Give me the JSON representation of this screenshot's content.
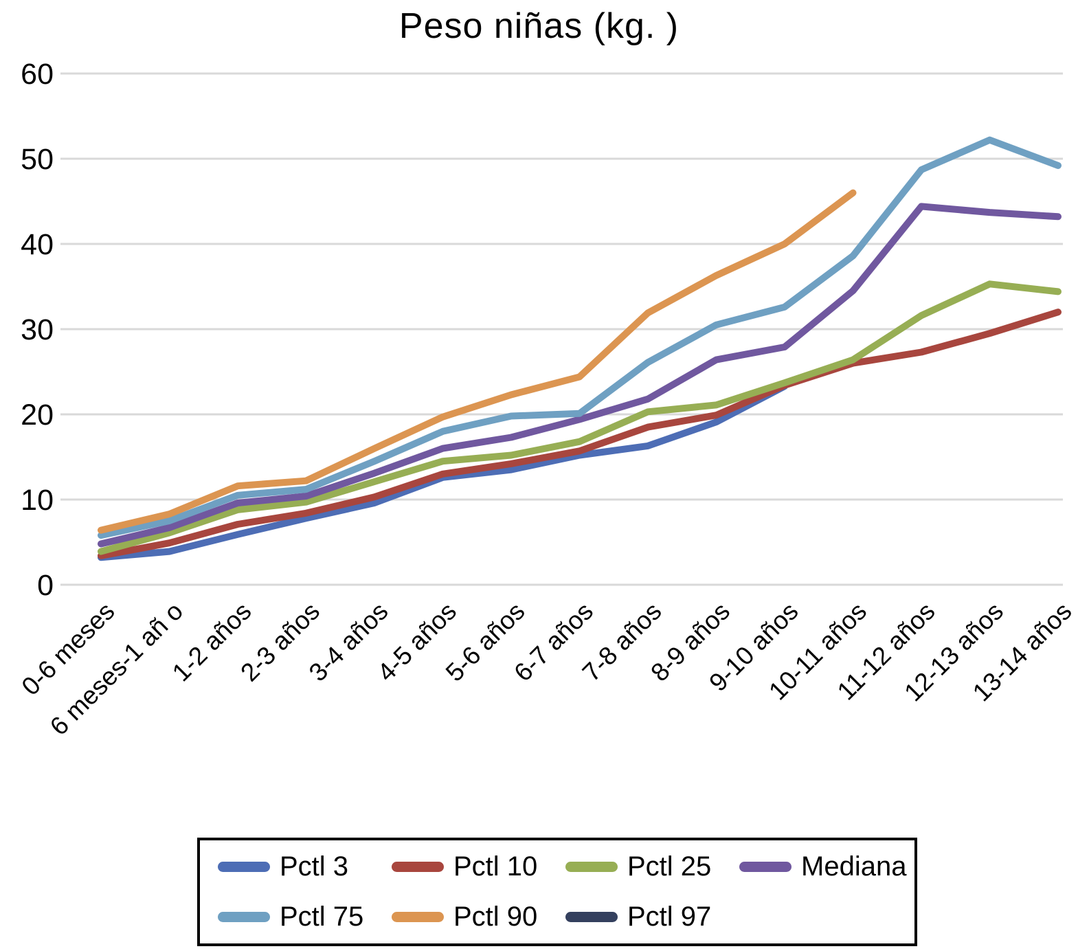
{
  "title": "Peso niñas (kg. )",
  "chart_data": {
    "type": "line",
    "title": "Peso niñas (kg. )",
    "xlabel": "",
    "ylabel": "",
    "ylim": [
      0,
      60
    ],
    "yticks": [
      0,
      10,
      20,
      30,
      40,
      50,
      60
    ],
    "grid": true,
    "legend_position": "bottom",
    "categories": [
      "0-6 meses",
      "6 meses-1 añ o",
      "1-2 años",
      "2-3 años",
      "3-4 años",
      "4-5 años",
      "5-6 años",
      "6-7 años",
      "7-8 años",
      "8-9 años",
      "9-10 años",
      "10-11 años",
      "11-12 años",
      "12-13 años",
      "13-14 años"
    ],
    "series": [
      {
        "name": "Pctl 3",
        "color": "#4D6DB5",
        "values": [
          3.2,
          3.9,
          5.9,
          7.8,
          9.6,
          12.6,
          13.5,
          15.2,
          16.3,
          19.1,
          23.3,
          null,
          null,
          null,
          null
        ]
      },
      {
        "name": "Pctl 10",
        "color": "#A8463E",
        "values": [
          3.4,
          4.9,
          7.1,
          8.4,
          10.3,
          13.0,
          14.2,
          15.7,
          18.5,
          19.9,
          23.4,
          26.0,
          27.3,
          29.5,
          32.0
        ]
      },
      {
        "name": "Pctl 25",
        "color": "#97AE54",
        "values": [
          3.9,
          6.1,
          8.8,
          9.7,
          12.1,
          14.5,
          15.2,
          16.8,
          20.3,
          21.1,
          23.7,
          26.4,
          31.6,
          35.3,
          34.4
        ]
      },
      {
        "name": "Mediana",
        "color": "#70589F",
        "values": [
          4.8,
          6.7,
          9.6,
          10.4,
          13.1,
          16.0,
          17.3,
          19.4,
          21.8,
          26.4,
          27.9,
          34.5,
          44.4,
          43.7,
          43.2
        ]
      },
      {
        "name": "Pctl 75",
        "color": "#6FA0C2",
        "values": [
          5.8,
          7.5,
          10.5,
          11.2,
          14.5,
          18.0,
          19.8,
          20.1,
          26.1,
          30.5,
          32.6,
          38.6,
          48.7,
          52.2,
          49.2
        ]
      },
      {
        "name": "Pctl 90",
        "color": "#DC9551",
        "values": [
          6.4,
          8.3,
          11.6,
          12.2,
          16.0,
          19.7,
          22.3,
          24.4,
          31.9,
          36.3,
          40.0,
          46.0,
          null,
          null,
          null
        ]
      },
      {
        "name": "Pctl 97",
        "color": "#34405E",
        "values": [
          null,
          null,
          null,
          null,
          null,
          null,
          null,
          null,
          null,
          null,
          null,
          null,
          null,
          null,
          null
        ]
      }
    ]
  }
}
